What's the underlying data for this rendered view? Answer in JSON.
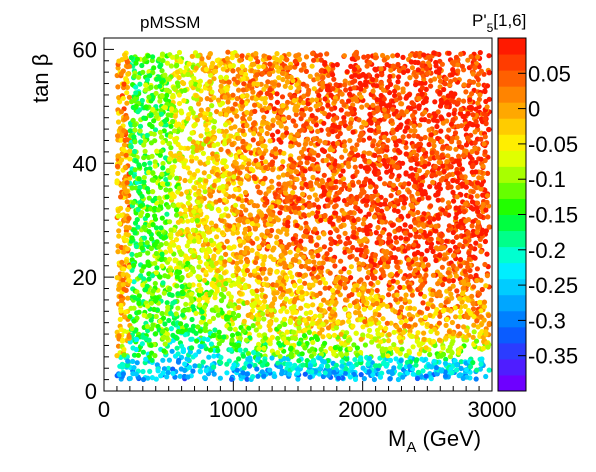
{
  "chart_data": {
    "type": "scatter",
    "title": "pMSSM",
    "colorbar_title": "P'5[1,6]",
    "colorbar_title_parts": {
      "main": "P'",
      "sub": "5",
      "rest": "[1,6]"
    },
    "xlabel_parts": {
      "main": "M",
      "sub": "A",
      "rest": " (GeV)"
    },
    "ylabel": "tan β",
    "xlim": [
      0,
      3000
    ],
    "ylim": [
      0,
      62
    ],
    "zlim": [
      -0.4,
      0.1
    ],
    "x_ticks": [
      {
        "value": 0,
        "label": "0"
      },
      {
        "value": 1000,
        "label": "1000"
      },
      {
        "value": 2000,
        "label": "2000"
      },
      {
        "value": 3000,
        "label": "3000"
      }
    ],
    "y_ticks": [
      {
        "value": 0,
        "label": "0"
      },
      {
        "value": 20,
        "label": "20"
      },
      {
        "value": 40,
        "label": "40"
      },
      {
        "value": 60,
        "label": "60"
      }
    ],
    "z_ticks": [
      {
        "value": 0.05,
        "label": "0.05"
      },
      {
        "value": 0,
        "label": "0"
      },
      {
        "value": -0.05,
        "label": "-0.05"
      },
      {
        "value": -0.1,
        "label": "-0.1"
      },
      {
        "value": -0.15,
        "label": "-0.15"
      },
      {
        "value": -0.2,
        "label": "-0.2"
      },
      {
        "value": -0.25,
        "label": "-0.25"
      },
      {
        "value": -0.3,
        "label": "-0.3"
      },
      {
        "value": -0.35,
        "label": "-0.35"
      }
    ],
    "color_levels": [
      "#6e00ff",
      "#4f1dff",
      "#2b3cff",
      "#0a5cff",
      "#0080ff",
      "#00a6ff",
      "#00ccff",
      "#00eeff",
      "#00ffd0",
      "#00ff8a",
      "#00ff40",
      "#22ff00",
      "#66ff00",
      "#a8ff00",
      "#e0ff00",
      "#ffee00",
      "#ffcc00",
      "#ffa800",
      "#ff8400",
      "#ff6000",
      "#ff3c00",
      "#ff1a00"
    ],
    "trend_summary": [
      {
        "region": "M_A < 200 GeV, all tan β",
        "z": 0.0
      },
      {
        "region": "M_A 200-500 GeV",
        "z": -0.15
      },
      {
        "region": "tan β < 6",
        "z": -0.3
      },
      {
        "region": "M_A > 1500 GeV, tan β > 25",
        "z": 0.07
      },
      {
        "region": "M_A ~ 1000 GeV, tan β ~ 20",
        "z": -0.03
      }
    ],
    "grid": false,
    "legend": "colorbar-right"
  }
}
